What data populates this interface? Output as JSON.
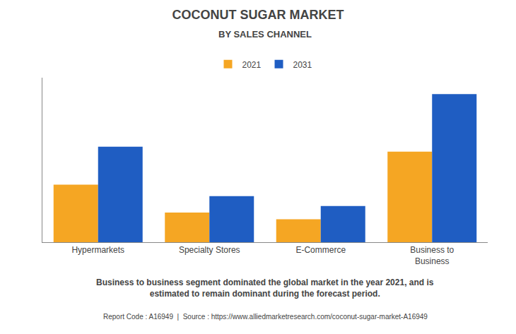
{
  "chart_data": {
    "type": "bar",
    "title": "COCONUT SUGAR MARKET",
    "subtitle": "BY SALES CHANNEL",
    "categories": [
      "Hypermarkets",
      "Specialty Stores",
      "E-Commerce",
      "Business to\nBusiness"
    ],
    "series": [
      {
        "name": "2021",
        "color": "#F5A623",
        "values": [
          35,
          18,
          14,
          55
        ]
      },
      {
        "name": "2031",
        "color": "#1F5DC2",
        "values": [
          58,
          28,
          22,
          90
        ]
      }
    ],
    "ylim": [
      0,
      100
    ],
    "yticks": [],
    "grid": false,
    "legend": "top",
    "tick_labels": "x",
    "annotations": [
      "Business to business segment dominated the global market in the year 2021, and is\nestimated to remain dominant during the forecast period.",
      "Report Code : A16949  |  Source : https://www.alliedmarketresearch.com/coconut-sugar-market-A16949"
    ]
  }
}
